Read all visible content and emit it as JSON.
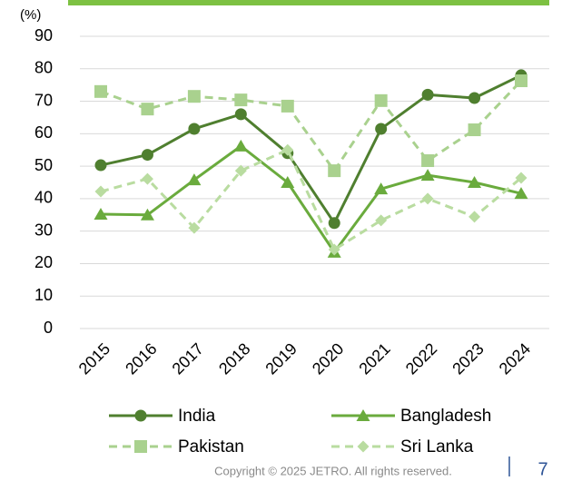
{
  "chart_data": {
    "type": "line",
    "y_unit_label": "(%)",
    "categories": [
      "2015",
      "2016",
      "2017",
      "2018",
      "2019",
      "2020",
      "2021",
      "2022",
      "2023",
      "2024"
    ],
    "series": [
      {
        "name": "India",
        "color": "#4f7f2f",
        "marker": "circle",
        "dashed": false,
        "values": [
          50.3,
          53.5,
          61.5,
          66,
          54,
          32.5,
          61.5,
          72,
          71,
          78
        ]
      },
      {
        "name": "Bangladesh",
        "color": "#6aab3d",
        "marker": "triangle",
        "dashed": false,
        "values": [
          35.2,
          35,
          45.8,
          56.2,
          45,
          23.5,
          43,
          47.2,
          45,
          41.6
        ]
      },
      {
        "name": "Pakistan",
        "color": "#a9d18e",
        "marker": "square",
        "dashed": true,
        "values": [
          73,
          67.6,
          71.5,
          70.4,
          68.5,
          48.6,
          70.2,
          51.7,
          61.2,
          76.3
        ]
      },
      {
        "name": "Sri Lanka",
        "color": "#b9dca0",
        "marker": "diamond",
        "dashed": true,
        "values": [
          42.2,
          46.1,
          31,
          48.6,
          55,
          24.3,
          33.3,
          40,
          34.4,
          46.4
        ]
      }
    ],
    "ylim": [
      0,
      90
    ],
    "yticks": [
      0,
      10,
      20,
      30,
      40,
      50,
      60,
      70,
      80,
      90
    ],
    "grid": true,
    "legend": "bottom"
  },
  "footer": {
    "copyright": "Copyright © 2025 JETRO. All rights reserved.",
    "page": "7"
  }
}
